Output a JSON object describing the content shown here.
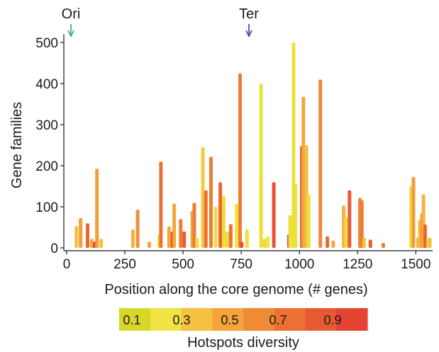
{
  "chart_data": {
    "type": "bar",
    "xlabel": "Position along the core genome (# genes)",
    "ylabel": "Gene families",
    "xlim": [
      0,
      1560
    ],
    "ylim": [
      0,
      520
    ],
    "xticks": [
      0,
      250,
      500,
      750,
      1000,
      1250,
      1500
    ],
    "yticks": [
      0,
      100,
      200,
      300,
      400,
      500
    ],
    "annotations": [
      {
        "label": "Ori",
        "x": 20,
        "color": "#2aa66a"
      },
      {
        "label": "Ter",
        "x": 790,
        "color": "#2e3f93"
      }
    ],
    "colorbar": {
      "label": "Hotspots diversity",
      "ticks": [
        "0.1",
        "0.3",
        "0.5",
        "0.7",
        "0.9"
      ],
      "colors": [
        "#d7d72a",
        "#f0e442",
        "#f6c043",
        "#f4a43a",
        "#ef8a35",
        "#ec7033",
        "#e85a32",
        "#e44432"
      ]
    },
    "bars": [
      {
        "x": 42,
        "y": 53,
        "d": 0.4
      },
      {
        "x": 60,
        "y": 73,
        "d": 0.55
      },
      {
        "x": 90,
        "y": 60,
        "d": 0.8
      },
      {
        "x": 108,
        "y": 22,
        "d": 0.5
      },
      {
        "x": 120,
        "y": 15,
        "d": 0.95
      },
      {
        "x": 130,
        "y": 193,
        "d": 0.55
      },
      {
        "x": 148,
        "y": 22,
        "d": 0.4
      },
      {
        "x": 285,
        "y": 45,
        "d": 0.45
      },
      {
        "x": 305,
        "y": 93,
        "d": 0.6
      },
      {
        "x": 355,
        "y": 15,
        "d": 0.5
      },
      {
        "x": 398,
        "y": 32,
        "d": 0.2
      },
      {
        "x": 405,
        "y": 210,
        "d": 0.75
      },
      {
        "x": 440,
        "y": 52,
        "d": 0.5
      },
      {
        "x": 455,
        "y": 40,
        "d": 0.9
      },
      {
        "x": 462,
        "y": 108,
        "d": 0.5
      },
      {
        "x": 490,
        "y": 70,
        "d": 0.7
      },
      {
        "x": 505,
        "y": 40,
        "d": 0.85
      },
      {
        "x": 540,
        "y": 90,
        "d": 0.5
      },
      {
        "x": 548,
        "y": 110,
        "d": 0.7
      },
      {
        "x": 560,
        "y": 25,
        "d": 0.3
      },
      {
        "x": 585,
        "y": 245,
        "d": 0.35
      },
      {
        "x": 598,
        "y": 140,
        "d": 0.75
      },
      {
        "x": 620,
        "y": 222,
        "d": 0.7
      },
      {
        "x": 640,
        "y": 100,
        "d": 0.3
      },
      {
        "x": 660,
        "y": 160,
        "d": 0.8
      },
      {
        "x": 675,
        "y": 127,
        "d": 0.2
      },
      {
        "x": 690,
        "y": 40,
        "d": 0.3
      },
      {
        "x": 705,
        "y": 58,
        "d": 0.75
      },
      {
        "x": 730,
        "y": 107,
        "d": 0.25
      },
      {
        "x": 745,
        "y": 425,
        "d": 0.7
      },
      {
        "x": 752,
        "y": 15,
        "d": 0.9
      },
      {
        "x": 775,
        "y": 45,
        "d": 0.2
      },
      {
        "x": 835,
        "y": 400,
        "d": 0.2
      },
      {
        "x": 850,
        "y": 22,
        "d": 0.3
      },
      {
        "x": 865,
        "y": 28,
        "d": 0.25
      },
      {
        "x": 890,
        "y": 160,
        "d": 0.9
      },
      {
        "x": 955,
        "y": 33,
        "d": 0.9
      },
      {
        "x": 960,
        "y": 80,
        "d": 0.2
      },
      {
        "x": 975,
        "y": 500,
        "d": 0.2
      },
      {
        "x": 983,
        "y": 155,
        "d": 0.2
      },
      {
        "x": 1010,
        "y": 248,
        "d": 0.8
      },
      {
        "x": 1017,
        "y": 368,
        "d": 0.5
      },
      {
        "x": 1030,
        "y": 250,
        "d": 0.4
      },
      {
        "x": 1040,
        "y": 130,
        "d": 0.2
      },
      {
        "x": 1090,
        "y": 410,
        "d": 0.65
      },
      {
        "x": 1120,
        "y": 28,
        "d": 0.8
      },
      {
        "x": 1145,
        "y": 18,
        "d": 0.5
      },
      {
        "x": 1190,
        "y": 103,
        "d": 0.45
      },
      {
        "x": 1200,
        "y": 75,
        "d": 0.3
      },
      {
        "x": 1215,
        "y": 140,
        "d": 0.85
      },
      {
        "x": 1260,
        "y": 122,
        "d": 0.65
      },
      {
        "x": 1268,
        "y": 116,
        "d": 0.7
      },
      {
        "x": 1278,
        "y": 25,
        "d": 0.4
      },
      {
        "x": 1305,
        "y": 20,
        "d": 0.85
      },
      {
        "x": 1360,
        "y": 12,
        "d": 0.7
      },
      {
        "x": 1480,
        "y": 150,
        "d": 0.3
      },
      {
        "x": 1490,
        "y": 173,
        "d": 0.55
      },
      {
        "x": 1510,
        "y": 25,
        "d": 0.5
      },
      {
        "x": 1517,
        "y": 68,
        "d": 0.4
      },
      {
        "x": 1527,
        "y": 85,
        "d": 0.6
      },
      {
        "x": 1533,
        "y": 130,
        "d": 0.45
      },
      {
        "x": 1540,
        "y": 57,
        "d": 0.8
      },
      {
        "x": 1553,
        "y": 22,
        "d": 0.3
      },
      {
        "x": 1560,
        "y": 25,
        "d": 0.4
      }
    ]
  }
}
